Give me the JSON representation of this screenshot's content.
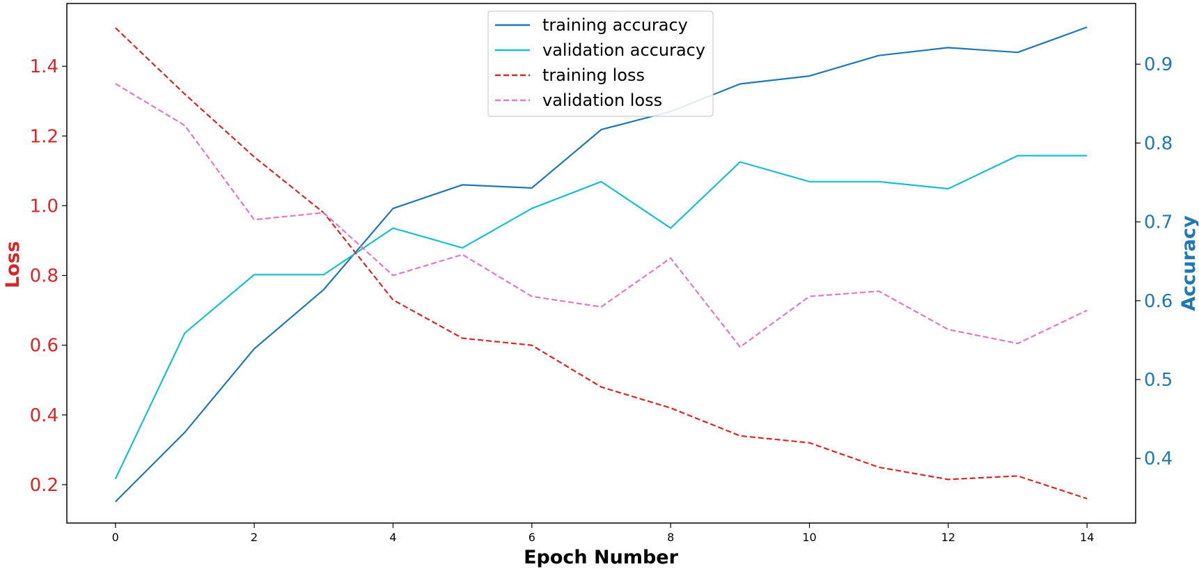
{
  "chart_data": {
    "type": "line",
    "xlabel": "Epoch Number",
    "ylabel_left": "Loss",
    "ylabel_right": "Accuracy",
    "x": [
      0,
      1,
      2,
      3,
      4,
      5,
      6,
      7,
      8,
      9,
      10,
      11,
      12,
      13,
      14
    ],
    "x_ticks": [
      0,
      2,
      4,
      6,
      8,
      10,
      12,
      14
    ],
    "xlim": [
      -0.7,
      14.7
    ],
    "y_left_ticks": [
      "0.2",
      "0.4",
      "0.6",
      "0.8",
      "1.0",
      "1.2",
      "1.4"
    ],
    "y_right_ticks": [
      "0.4",
      "0.5",
      "0.6",
      "0.7",
      "0.8",
      "0.9"
    ],
    "ylim_left": [
      0.09,
      1.58
    ],
    "ylim_right": [
      0.318,
      0.977
    ],
    "grid": false,
    "legend_position": "upper center",
    "series": [
      {
        "name": "training accuracy",
        "axis": "right",
        "style": "solid",
        "color": "#1f77b4",
        "values": [
          0.345,
          0.433,
          0.539,
          0.614,
          0.717,
          0.747,
          0.743,
          0.817,
          0.84,
          0.875,
          0.885,
          0.911,
          0.921,
          0.915,
          0.947
        ]
      },
      {
        "name": "validation accuracy",
        "axis": "right",
        "style": "solid",
        "color": "#17becf",
        "values": [
          0.374,
          0.559,
          0.633,
          0.633,
          0.692,
          0.667,
          0.717,
          0.751,
          0.692,
          0.776,
          0.751,
          0.751,
          0.742,
          0.784,
          0.784
        ]
      },
      {
        "name": "training loss",
        "axis": "left",
        "style": "dashed",
        "color": "#d62728",
        "values": [
          1.51,
          1.32,
          1.14,
          0.98,
          0.73,
          0.62,
          0.6,
          0.48,
          0.42,
          0.34,
          0.32,
          0.25,
          0.215,
          0.225,
          0.16
        ]
      },
      {
        "name": "validation loss",
        "axis": "left",
        "style": "dashed",
        "color": "#e377c2",
        "values": [
          1.35,
          1.23,
          0.96,
          0.98,
          0.8,
          0.86,
          0.74,
          0.71,
          0.85,
          0.595,
          0.74,
          0.755,
          0.645,
          0.605,
          0.7
        ]
      }
    ],
    "colors": {
      "left_axis": "#d62728",
      "right_axis": "#1f77b4"
    }
  }
}
